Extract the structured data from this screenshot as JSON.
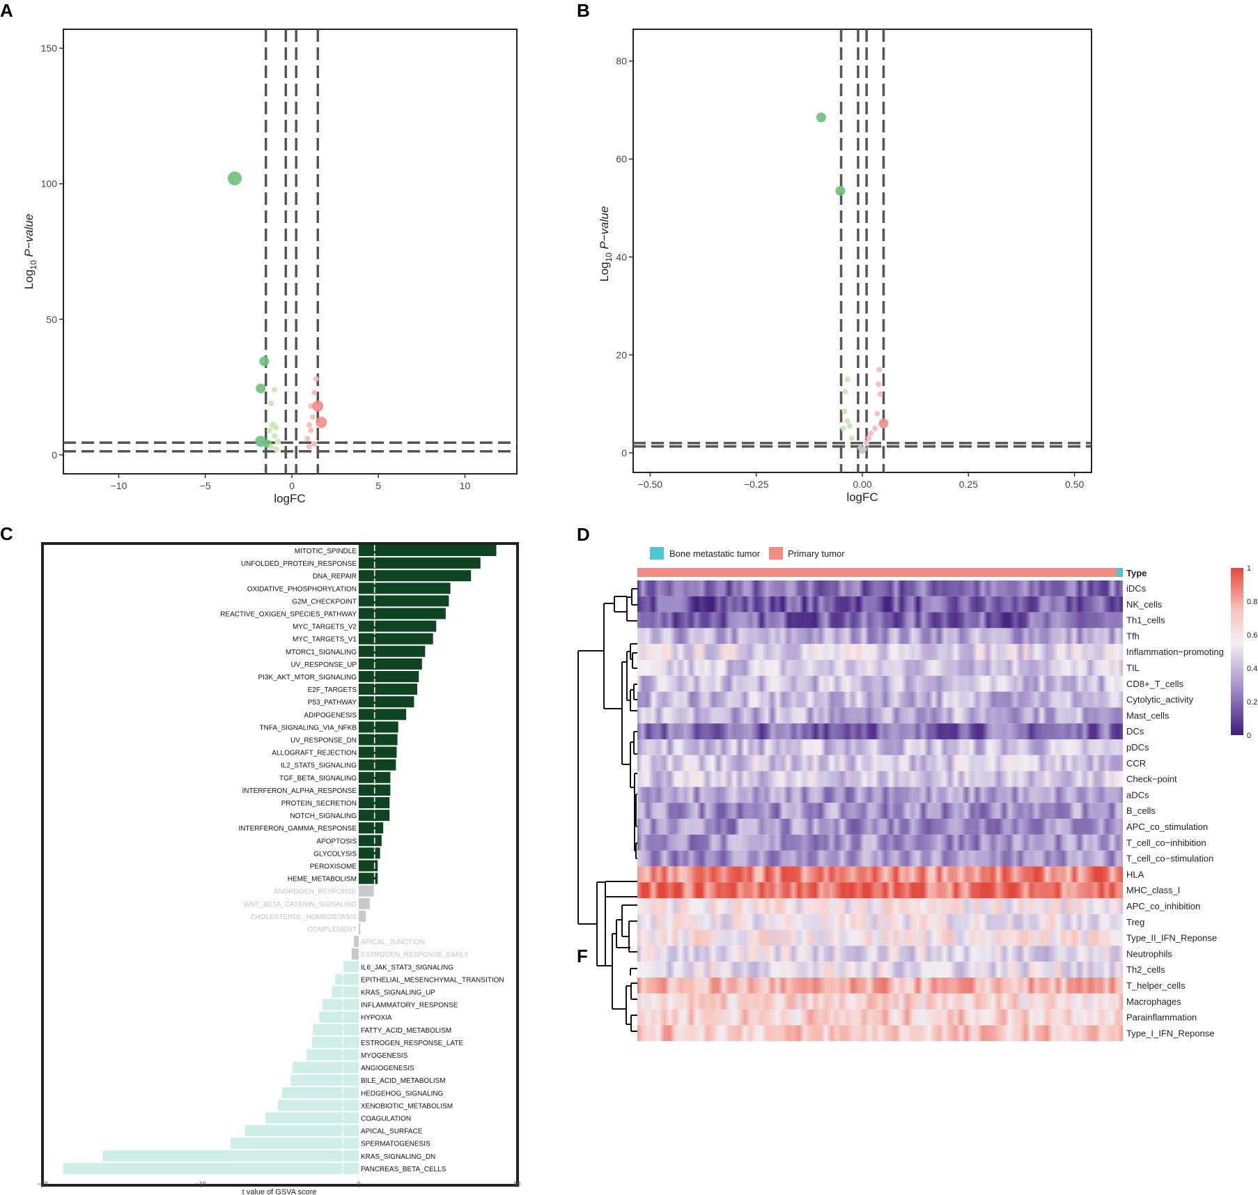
{
  "panels": {
    "a": "A",
    "b": "B",
    "c": "C",
    "d": "D",
    "f": "F"
  },
  "colors": {
    "green_dark": "#6cc07a",
    "green_light": "#c8e6b0",
    "red": "#f28b8b",
    "red_light": "#f6b9b9",
    "grey": "#c8c8c8",
    "dash": "#555555",
    "bar_up": "#0f4423",
    "bar_down": "#cfeee7",
    "bar_ns": "#c9c9c9",
    "legend_bone": "#4fc6cf",
    "legend_primary": "#f28b82"
  },
  "chart_data": [
    {
      "id": "A",
      "type": "scatter",
      "title": "",
      "xlabel": "logFC",
      "ylabel_prefix": "Log",
      "ylabel_sub": "10",
      "ylabel_suffix": " P−value",
      "xlim": [
        -13.2,
        13.0
      ],
      "ylim": [
        -7,
        157
      ],
      "xticks": [
        -10,
        -5,
        0,
        5,
        10
      ],
      "xtick_labels": [
        "−10",
        "−5",
        "0",
        "5",
        "10"
      ],
      "yticks": [
        0,
        50,
        100,
        150
      ],
      "ytick_labels": [
        "0",
        "50",
        "100",
        "150"
      ],
      "vlines": [
        -1.5,
        -0.35,
        0.25,
        1.5
      ],
      "hlines": [
        1.3,
        4.5
      ],
      "points": [
        {
          "x": -3.3,
          "y": 102,
          "s": 10,
          "c": "green_dark"
        },
        {
          "x": -1.6,
          "y": 34.5,
          "s": 7,
          "c": "green_dark"
        },
        {
          "x": -1.8,
          "y": 24.5,
          "s": 7,
          "c": "green_dark"
        },
        {
          "x": -1.8,
          "y": 5,
          "s": 8,
          "c": "green_dark"
        },
        {
          "x": -1.4,
          "y": 4,
          "s": 6,
          "c": "green_dark"
        },
        {
          "x": -1.2,
          "y": 19,
          "s": 4,
          "c": "green_light"
        },
        {
          "x": -1.0,
          "y": 24,
          "s": 4,
          "c": "green_light"
        },
        {
          "x": -1.1,
          "y": 11,
          "s": 5,
          "c": "green_light"
        },
        {
          "x": -0.9,
          "y": 10,
          "s": 4,
          "c": "green_light"
        },
        {
          "x": -1.3,
          "y": 9,
          "s": 4,
          "c": "green_light"
        },
        {
          "x": -1.0,
          "y": 7,
          "s": 4,
          "c": "green_light"
        },
        {
          "x": -0.8,
          "y": 5,
          "s": 4,
          "c": "green_light"
        },
        {
          "x": -1.2,
          "y": 3,
          "s": 4,
          "c": "green_light"
        },
        {
          "x": -0.9,
          "y": 2,
          "s": 4,
          "c": "green_light"
        },
        {
          "x": 1.4,
          "y": 28,
          "s": 4,
          "c": "red_light"
        },
        {
          "x": 1.3,
          "y": 23,
          "s": 4,
          "c": "red_light"
        },
        {
          "x": 1.1,
          "y": 18,
          "s": 4,
          "c": "red_light"
        },
        {
          "x": 1.5,
          "y": 18,
          "s": 8,
          "c": "red"
        },
        {
          "x": 1.7,
          "y": 12,
          "s": 8,
          "c": "red"
        },
        {
          "x": 1.2,
          "y": 14,
          "s": 4,
          "c": "red_light"
        },
        {
          "x": 1.0,
          "y": 11,
          "s": 4,
          "c": "red_light"
        },
        {
          "x": 1.1,
          "y": 9,
          "s": 4,
          "c": "red_light"
        },
        {
          "x": 0.9,
          "y": 6,
          "s": 4,
          "c": "red_light"
        },
        {
          "x": 1.0,
          "y": 3,
          "s": 4,
          "c": "red_light"
        },
        {
          "x": 1.3,
          "y": 4,
          "s": 4,
          "c": "red_light"
        }
      ]
    },
    {
      "id": "B",
      "type": "scatter",
      "title": "",
      "xlabel": "logFC",
      "ylabel_prefix": "Log",
      "ylabel_sub": "10",
      "ylabel_suffix": " P−value",
      "xlim": [
        -0.54,
        0.54
      ],
      "ylim": [
        -4,
        86.5
      ],
      "xticks": [
        -0.5,
        -0.25,
        0.0,
        0.25,
        0.5
      ],
      "xtick_labels": [
        "−0.50",
        "−0.25",
        "0.00",
        "0.25",
        "0.50"
      ],
      "yticks": [
        0,
        20,
        40,
        60,
        80
      ],
      "ytick_labels": [
        "0",
        "20",
        "40",
        "60",
        "80"
      ],
      "vlines": [
        -0.05,
        -0.01,
        0.01,
        0.05
      ],
      "hlines": [
        1.3,
        2.0
      ],
      "points": [
        {
          "x": -0.097,
          "y": 68.5,
          "s": 7,
          "c": "green_dark"
        },
        {
          "x": -0.052,
          "y": 53.5,
          "s": 7,
          "c": "green_dark"
        },
        {
          "x": -0.035,
          "y": 15,
          "s": 4,
          "c": "green_light"
        },
        {
          "x": -0.04,
          "y": 12.5,
          "s": 4,
          "c": "green_light"
        },
        {
          "x": -0.042,
          "y": 8.5,
          "s": 4,
          "c": "green_light"
        },
        {
          "x": -0.035,
          "y": 6.5,
          "s": 4,
          "c": "green_light"
        },
        {
          "x": -0.03,
          "y": 5.5,
          "s": 4,
          "c": "green_light"
        },
        {
          "x": -0.045,
          "y": 5,
          "s": 4,
          "c": "green_light"
        },
        {
          "x": -0.025,
          "y": 3,
          "s": 4,
          "c": "green_light"
        },
        {
          "x": 0.04,
          "y": 17,
          "s": 4,
          "c": "red_light"
        },
        {
          "x": 0.038,
          "y": 14,
          "s": 4,
          "c": "red_light"
        },
        {
          "x": 0.042,
          "y": 12,
          "s": 4,
          "c": "red_light"
        },
        {
          "x": 0.05,
          "y": 6,
          "s": 7,
          "c": "red"
        },
        {
          "x": 0.035,
          "y": 8,
          "s": 4,
          "c": "red_light"
        },
        {
          "x": 0.03,
          "y": 5,
          "s": 4,
          "c": "red_light"
        },
        {
          "x": 0.02,
          "y": 4,
          "s": 4,
          "c": "red_light"
        },
        {
          "x": 0.015,
          "y": 3,
          "s": 4,
          "c": "red_light"
        },
        {
          "x": 0.01,
          "y": 2,
          "s": 4,
          "c": "red_light"
        },
        {
          "x": -0.005,
          "y": 1,
          "s": 4,
          "c": "grey"
        },
        {
          "x": 0.0,
          "y": 0.3,
          "s": 4,
          "c": "grey"
        },
        {
          "x": 0.005,
          "y": 0.8,
          "s": 4,
          "c": "grey"
        }
      ]
    },
    {
      "id": "C",
      "type": "bar",
      "orientation": "horizontal",
      "xlabel": "t value of GSVA score",
      "xlim": [
        -20,
        10
      ],
      "xticks": [
        -20,
        -10,
        0,
        10
      ],
      "xtick_labels": [
        "−20",
        "−10",
        "0",
        "10"
      ],
      "threshold_lines": [
        -1,
        1
      ],
      "categories": [
        "MITOTIC_SPINDLE",
        "UNFOLDED_PROTEIN_RESPONSE",
        "DNA_REPAIR",
        "OXIDATIVE_PHOSPHORYLATION",
        "G2M_CHECKPOINT",
        "REACTIVE_OXIGEN_SPECIES_PATHWAY",
        "MYC_TARGETS_V2",
        "MYC_TARGETS_V1",
        "MTORC1_SIGNALING",
        "UV_RESPONSE_UP",
        "PI3K_AKT_MTOR_SIGNALING",
        "E2F_TARGETS",
        "P53_PATHWAY",
        "ADIPOGENESIS",
        "TNFA_SIGNALING_VIA_NFKB",
        "UV_RESPONSE_DN",
        "ALLOGRAFT_REJECTION",
        "IL2_STAT5_SIGNALING",
        "TGF_BETA_SIGNALING",
        "INTERFERON_ALPHA_RESPONSE",
        "PROTEIN_SECRETION",
        "NOTCH_SIGNALING",
        "INTERFERON_GAMMA_RESPONSE",
        "APOPTOSIS",
        "GLYCOLYSIS",
        "PEROXISOME",
        "HEME_METABOLISM",
        "ANDROGEN_RESPONSE",
        "WNT_BETA_CATENIN_SIGNALING",
        "CHOLESTEROL_HOMEOSTASIS",
        "COMPLEMENT",
        "APICAL_JUNCTION",
        "ESTROGEN_RESPONSE_EARLY",
        "IL6_JAK_STAT3_SIGNALING",
        "EPITHELIAL_MESENCHYMAL_TRANSITION",
        "KRAS_SIGNALING_UP",
        "INFLAMMATORY_RESPONSE",
        "HYPOXIA",
        "FATTY_ACID_METABOLISM",
        "ESTROGEN_RESPONSE_LATE",
        "MYOGENESIS",
        "ANGIOGENESIS",
        "BILE_ACID_METABOLISM",
        "HEDGEHOG_SIGNALING",
        "XENOBIOTIC_METABOLISM",
        "COAGULATION",
        "APICAL_SURFACE",
        "SPERMATOGENESIS",
        "KRAS_SIGNALING_DN",
        "PANCREAS_BETA_CELLS"
      ],
      "values": [
        8.7,
        7.7,
        7.1,
        5.8,
        5.7,
        5.5,
        4.9,
        4.7,
        4.2,
        4.0,
        3.8,
        3.7,
        3.5,
        3.0,
        2.5,
        2.45,
        2.4,
        2.35,
        2.0,
        2.0,
        1.95,
        1.95,
        1.55,
        1.45,
        1.35,
        1.2,
        1.2,
        0.95,
        0.7,
        0.45,
        0.1,
        -0.3,
        -0.45,
        -1.0,
        -1.5,
        -1.7,
        -2.3,
        -2.5,
        -2.9,
        -2.95,
        -3.3,
        -4.2,
        -4.3,
        -4.85,
        -5.1,
        -5.9,
        -7.2,
        -8.1,
        -16.2,
        -18.7
      ],
      "significance": [
        "up",
        "up",
        "up",
        "up",
        "up",
        "up",
        "up",
        "up",
        "up",
        "up",
        "up",
        "up",
        "up",
        "up",
        "up",
        "up",
        "up",
        "up",
        "up",
        "up",
        "up",
        "up",
        "up",
        "up",
        "up",
        "up",
        "up",
        "ns",
        "ns",
        "ns",
        "ns",
        "ns",
        "ns",
        "down",
        "down",
        "down",
        "down",
        "down",
        "down",
        "down",
        "down",
        "down",
        "down",
        "down",
        "down",
        "down",
        "down",
        "down",
        "down",
        "down"
      ]
    },
    {
      "id": "D",
      "type": "heatmap",
      "legend": [
        {
          "label": "Bone metastatic tumor",
          "color": "legend_bone"
        },
        {
          "label": "Primary tumor",
          "color": "legend_primary"
        }
      ],
      "annotation_label": "Type",
      "rows": [
        "iDCs",
        "NK_cells",
        "Th1_cells",
        "Tfh",
        "Inflammation−promoting",
        "TIL",
        "CD8+_T_cells",
        "Cytolytic_activity",
        "Mast_cells",
        "DCs",
        "pDCs",
        "CCR",
        "Check−point",
        "aDCs",
        "B_cells",
        "APC_co_stimulation",
        "T_cell_co−inhibition",
        "T_cell_co−stimulation",
        "HLA",
        "MHC_class_I",
        "APC_co_inhibition",
        "Treg",
        "Type_II_IFN_Reponse",
        "Neutrophils",
        "Th2_cells",
        "T_helper_cells",
        "Macrophages",
        "Parainflammation",
        "Type_I_IFN_Reponse"
      ],
      "row_mean_levels": [
        0.2,
        0.15,
        0.18,
        0.35,
        0.5,
        0.45,
        0.42,
        0.4,
        0.38,
        0.2,
        0.42,
        0.45,
        0.45,
        0.32,
        0.3,
        0.3,
        0.3,
        0.3,
        0.85,
        0.92,
        0.58,
        0.55,
        0.6,
        0.5,
        0.52,
        0.75,
        0.65,
        0.68,
        0.7
      ],
      "colorbar": {
        "min": 0,
        "max": 1,
        "tick_labels": [
          "1",
          "0.8",
          "0.6",
          "0.4",
          "0.2",
          "0"
        ]
      }
    }
  ]
}
